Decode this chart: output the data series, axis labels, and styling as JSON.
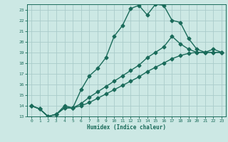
{
  "xlabel": "Humidex (Indice chaleur)",
  "bg_color": "#cce8e4",
  "grid_color": "#aaccca",
  "line_color": "#1a6b5a",
  "marker": "D",
  "markersize": 2.5,
  "linewidth": 1.0,
  "xlim": [
    -0.5,
    23.5
  ],
  "ylim": [
    13,
    23.5
  ],
  "yticks": [
    13,
    14,
    15,
    16,
    17,
    18,
    19,
    20,
    21,
    22,
    23
  ],
  "xticks": [
    0,
    1,
    2,
    3,
    4,
    5,
    6,
    7,
    8,
    9,
    10,
    11,
    12,
    13,
    14,
    15,
    16,
    17,
    18,
    19,
    20,
    21,
    22,
    23
  ],
  "series1_x": [
    0,
    1,
    2,
    3,
    4,
    5,
    6,
    7,
    8,
    9,
    10,
    11,
    12,
    13,
    14,
    15,
    16,
    17,
    18,
    19,
    20,
    21,
    22,
    23
  ],
  "series1_y": [
    14.0,
    13.7,
    13.0,
    13.2,
    14.0,
    13.8,
    15.5,
    16.8,
    17.5,
    18.5,
    20.5,
    21.5,
    23.1,
    23.4,
    22.5,
    23.5,
    23.4,
    22.0,
    21.8,
    20.3,
    19.3,
    19.0,
    19.3,
    19.0
  ],
  "series2_x": [
    0,
    1,
    2,
    3,
    4,
    5,
    6,
    7,
    8,
    9,
    10,
    11,
    12,
    13,
    14,
    15,
    16,
    17,
    18,
    19,
    20,
    21,
    22,
    23
  ],
  "series2_y": [
    14.0,
    13.7,
    13.0,
    13.2,
    13.8,
    13.8,
    14.2,
    14.8,
    15.3,
    15.8,
    16.3,
    16.8,
    17.3,
    17.8,
    18.5,
    19.0,
    19.5,
    20.5,
    19.8,
    19.3,
    19.0,
    19.0,
    19.0,
    19.0
  ],
  "series3_x": [
    0,
    1,
    2,
    3,
    4,
    5,
    6,
    7,
    8,
    9,
    10,
    11,
    12,
    13,
    14,
    15,
    16,
    17,
    18,
    19,
    20,
    21,
    22,
    23
  ],
  "series3_y": [
    14.0,
    13.7,
    13.0,
    13.2,
    13.8,
    13.8,
    14.0,
    14.3,
    14.7,
    15.1,
    15.5,
    15.9,
    16.3,
    16.7,
    17.2,
    17.6,
    18.0,
    18.4,
    18.7,
    18.9,
    19.0,
    19.0,
    19.0,
    19.0
  ]
}
